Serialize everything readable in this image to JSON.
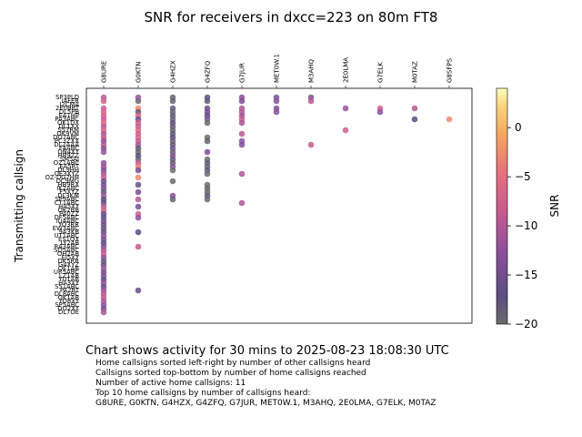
{
  "chart_data": {
    "type": "scatter",
    "title": "SNR for receivers in dxcc=223 on 80m FT8",
    "xlabel": "",
    "ylabel": "Transmitting callsign",
    "colorbar_label": "SNR",
    "colorbar_range": [
      -20,
      4
    ],
    "colorbar_ticks": [
      0,
      -5,
      -10,
      -15,
      -20
    ],
    "colormap": "inferno",
    "x_categories": [
      "G8URE",
      "G0KTN",
      "G4HZX",
      "G4ZFQ",
      "G7JUR",
      "MET0W.1",
      "M3AHQ",
      "2E0LMA",
      "G7ELK",
      "M0TAZ",
      "G8SFPS"
    ],
    "y_labels": [
      "SP3PLD",
      "I4FER",
      "I2CMA",
      "2E0BRT",
      "DL5PB",
      "EA1HP",
      "PA3ABC",
      "OK1DX",
      "DL1XX",
      "S57RM",
      "DK9VM",
      "DO7ABC",
      "PC3ZXX",
      "DL2AAA",
      "F4ABC",
      "ON4XY",
      "HB9ZZ",
      "SM5AJ",
      "OZ1ABC",
      "EA5RT",
      "DL9HH",
      "OE3XYZ",
      "OZ-DG7HH",
      "DC9MG",
      "HB9RX",
      "IK2ABC",
      "F5XYZ",
      "DL3KM",
      "SP9ABC",
      "CT1ABC",
      "HA5XY",
      "OK2BB",
      "PA0ZZ",
      "DF5ABC",
      "IU4ABC",
      "YO3RR",
      "EW3ABC",
      "9A3KB",
      "UT1ABC",
      "ES1QX",
      "LY2AB",
      "RA3ABC",
      "SQ5ABC",
      "OH2AB",
      "EI5XY",
      "DK5RR",
      "G4XYZ",
      "OE1AB",
      "UR5ABC",
      "LZ1AB",
      "YU1AB",
      "HA3XY",
      "S51ABC",
      "PA2RT",
      "DL8ABC",
      "OK1AB",
      "YO8XY",
      "SP5ABC",
      "DO2XY",
      "DL7OE"
    ],
    "points": [
      {
        "x": "G8URE",
        "y": "SP3PLD",
        "snr": -10
      },
      {
        "x": "G0KTN",
        "y": "SP3PLD",
        "snr": -12
      },
      {
        "x": "G4HZX",
        "y": "SP3PLD",
        "snr": -19
      },
      {
        "x": "G4ZFQ",
        "y": "SP3PLD",
        "snr": -17
      },
      {
        "x": "G7JUR",
        "y": "SP3PLD",
        "snr": -13
      },
      {
        "x": "MET0W.1",
        "y": "SP3PLD",
        "snr": -14
      },
      {
        "x": "M3AHQ",
        "y": "SP3PLD",
        "snr": -14
      },
      {
        "x": "G8URE",
        "y": "I4FER",
        "snr": -8
      },
      {
        "x": "G0KTN",
        "y": "I4FER",
        "snr": -20
      },
      {
        "x": "G4HZX",
        "y": "I4FER",
        "snr": -19
      },
      {
        "x": "G4ZFQ",
        "y": "I4FER",
        "snr": -18
      },
      {
        "x": "G7JUR",
        "y": "I4FER",
        "snr": -14
      },
      {
        "x": "MET0W.1",
        "y": "I4FER",
        "snr": -13
      },
      {
        "x": "M3AHQ",
        "y": "I4FER",
        "snr": -10
      },
      {
        "x": "G8URE",
        "y": "2E0BRT",
        "snr": -9
      },
      {
        "x": "G0KTN",
        "y": "2E0BRT",
        "snr": -3
      },
      {
        "x": "G4HZX",
        "y": "2E0BRT",
        "snr": -18
      },
      {
        "x": "G4ZFQ",
        "y": "2E0BRT",
        "snr": -16
      },
      {
        "x": "G7JUR",
        "y": "2E0BRT",
        "snr": -11
      },
      {
        "x": "MET0W.1",
        "y": "2E0BRT",
        "snr": -14
      },
      {
        "x": "2E0LMA",
        "y": "2E0BRT",
        "snr": -12
      },
      {
        "x": "G7ELK",
        "y": "2E0BRT",
        "snr": -8
      },
      {
        "x": "M0TAZ",
        "y": "2E0BRT",
        "snr": -10
      },
      {
        "x": "G8URE",
        "y": "DL5PB",
        "snr": -7
      },
      {
        "x": "G0KTN",
        "y": "DL5PB",
        "snr": -18
      },
      {
        "x": "G4HZX",
        "y": "DL5PB",
        "snr": -19
      },
      {
        "x": "G4ZFQ",
        "y": "DL5PB",
        "snr": -15
      },
      {
        "x": "G7JUR",
        "y": "DL5PB",
        "snr": -10
      },
      {
        "x": "MET0W.1",
        "y": "DL5PB",
        "snr": -13
      },
      {
        "x": "G7ELK",
        "y": "DL5PB",
        "snr": -13
      },
      {
        "x": "G8URE",
        "y": "EA1HP",
        "snr": -8
      },
      {
        "x": "G0KTN",
        "y": "EA1HP",
        "snr": -7
      },
      {
        "x": "G4HZX",
        "y": "EA1HP",
        "snr": -18
      },
      {
        "x": "G4ZFQ",
        "y": "EA1HP",
        "snr": -17
      },
      {
        "x": "G7JUR",
        "y": "EA1HP",
        "snr": -12
      },
      {
        "x": "G8URE",
        "y": "PA3ABC",
        "snr": -9
      },
      {
        "x": "G0KTN",
        "y": "PA3ABC",
        "snr": -16
      },
      {
        "x": "G4HZX",
        "y": "PA3ABC",
        "snr": -19
      },
      {
        "x": "G4ZFQ",
        "y": "PA3ABC",
        "snr": -14
      },
      {
        "x": "G7JUR",
        "y": "PA3ABC",
        "snr": -9
      },
      {
        "x": "M0TAZ",
        "y": "PA3ABC",
        "snr": -17
      },
      {
        "x": "G8SFPS",
        "y": "PA3ABC",
        "snr": -3
      },
      {
        "x": "G8URE",
        "y": "OK1DX",
        "snr": -6
      },
      {
        "x": "G0KTN",
        "y": "OK1DX",
        "snr": -8
      },
      {
        "x": "G4HZX",
        "y": "OK1DX",
        "snr": -17
      },
      {
        "x": "G4ZFQ",
        "y": "OK1DX",
        "snr": -20
      },
      {
        "x": "G7JUR",
        "y": "OK1DX",
        "snr": -11
      },
      {
        "x": "G8URE",
        "y": "DL1XX",
        "snr": -10
      },
      {
        "x": "G0KTN",
        "y": "DL1XX",
        "snr": -9
      },
      {
        "x": "G4HZX",
        "y": "DL1XX",
        "snr": -18
      },
      {
        "x": "G8URE",
        "y": "S57RM",
        "snr": -7
      },
      {
        "x": "G0KTN",
        "y": "S57RM",
        "snr": -6
      },
      {
        "x": "G4HZX",
        "y": "S57RM",
        "snr": -19
      },
      {
        "x": "2E0LMA",
        "y": "S57RM",
        "snr": -8
      },
      {
        "x": "G8URE",
        "y": "DK9VM",
        "snr": -11
      },
      {
        "x": "G0KTN",
        "y": "DK9VM",
        "snr": -8
      },
      {
        "x": "G4HZX",
        "y": "DK9VM",
        "snr": -18
      },
      {
        "x": "G7JUR",
        "y": "DK9VM",
        "snr": -10
      },
      {
        "x": "G8URE",
        "y": "DO7ABC",
        "snr": -9
      },
      {
        "x": "G0KTN",
        "y": "DO7ABC",
        "snr": -7
      },
      {
        "x": "G4HZX",
        "y": "DO7ABC",
        "snr": -17
      },
      {
        "x": "G4ZFQ",
        "y": "DO7ABC",
        "snr": -20
      },
      {
        "x": "G8URE",
        "y": "PC3ZXX",
        "snr": -13
      },
      {
        "x": "G0KTN",
        "y": "PC3ZXX",
        "snr": -9
      },
      {
        "x": "G4HZX",
        "y": "PC3ZXX",
        "snr": -19
      },
      {
        "x": "G4ZFQ",
        "y": "PC3ZXX",
        "snr": -19
      },
      {
        "x": "G7JUR",
        "y": "PC3ZXX",
        "snr": -13
      },
      {
        "x": "G8URE",
        "y": "DL2AAA",
        "snr": -10
      },
      {
        "x": "G0KTN",
        "y": "DL2AAA",
        "snr": -11
      },
      {
        "x": "G4HZX",
        "y": "DL2AAA",
        "snr": -18
      },
      {
        "x": "G7JUR",
        "y": "DL2AAA",
        "snr": -14
      },
      {
        "x": "M3AHQ",
        "y": "DL2AAA",
        "snr": -9
      },
      {
        "x": "G8URE",
        "y": "F4ABC",
        "snr": -14
      },
      {
        "x": "G0KTN",
        "y": "F4ABC",
        "snr": -18
      },
      {
        "x": "G4HZX",
        "y": "F4ABC",
        "snr": -15
      },
      {
        "x": "G8URE",
        "y": "ON4XY",
        "snr": -12
      },
      {
        "x": "G0KTN",
        "y": "ON4XY",
        "snr": -20
      },
      {
        "x": "G4HZX",
        "y": "ON4XY",
        "snr": -19
      },
      {
        "x": "G4ZFQ",
        "y": "ON4XY",
        "snr": -14
      },
      {
        "x": "G0KTN",
        "y": "HB9ZZ",
        "snr": -17
      },
      {
        "x": "G4HZX",
        "y": "HB9ZZ",
        "snr": -14
      },
      {
        "x": "G0KTN",
        "y": "SM5AJ",
        "snr": -19
      },
      {
        "x": "G4HZX",
        "y": "SM5AJ",
        "snr": -18
      },
      {
        "x": "G4ZFQ",
        "y": "SM5AJ",
        "snr": -20
      },
      {
        "x": "G8URE",
        "y": "OZ1ABC",
        "snr": -13
      },
      {
        "x": "G0KTN",
        "y": "OZ1ABC",
        "snr": -9
      },
      {
        "x": "G4HZX",
        "y": "OZ1ABC",
        "snr": -19
      },
      {
        "x": "G4ZFQ",
        "y": "OZ1ABC",
        "snr": -18
      },
      {
        "x": "G8URE",
        "y": "EA5RT",
        "snr": -12
      },
      {
        "x": "G0KTN",
        "y": "EA5RT",
        "snr": -4
      },
      {
        "x": "G4HZX",
        "y": "EA5RT",
        "snr": -13
      },
      {
        "x": "G4ZFQ",
        "y": "EA5RT",
        "snr": -19
      },
      {
        "x": "G8URE",
        "y": "DL9HH",
        "snr": -15
      },
      {
        "x": "G0KTN",
        "y": "DL9HH",
        "snr": -15
      },
      {
        "x": "G4HZX",
        "y": "DL9HH",
        "snr": -20
      },
      {
        "x": "G4ZFQ",
        "y": "DL9HH",
        "snr": -18
      },
      {
        "x": "G8URE",
        "y": "OE3XYZ",
        "snr": -11
      },
      {
        "x": "G4ZFQ",
        "y": "OE3XYZ",
        "snr": -20
      },
      {
        "x": "G7JUR",
        "y": "OE3XYZ",
        "snr": -11
      },
      {
        "x": "G8URE",
        "y": "OZ-DG7HH",
        "snr": -9
      },
      {
        "x": "G0KTN",
        "y": "OZ-DG7HH",
        "snr": -3
      },
      {
        "x": "G8URE",
        "y": "DC9MG",
        "snr": -16
      },
      {
        "x": "G8URE",
        "y": "HB9RX",
        "snr": -15
      },
      {
        "x": "G0KTN",
        "y": "HB9RX",
        "snr": -16
      },
      {
        "x": "G8URE",
        "y": "IK2ABC",
        "snr": -14
      },
      {
        "x": "G8URE",
        "y": "F5XYZ",
        "snr": -18
      },
      {
        "x": "G0KTN",
        "y": "F5XYZ",
        "snr": -14
      },
      {
        "x": "G8URE",
        "y": "DL3KM",
        "snr": -12
      },
      {
        "x": "G8URE",
        "y": "SP9ABC",
        "snr": -17
      },
      {
        "x": "G0KTN",
        "y": "SP9ABC",
        "snr": -10
      },
      {
        "x": "G8URE",
        "y": "CT1ABC",
        "snr": -16
      },
      {
        "x": "G8URE",
        "y": "HA5XY",
        "snr": -10
      },
      {
        "x": "G0KTN",
        "y": "HA5XY",
        "snr": -15
      },
      {
        "x": "G8URE",
        "y": "OK2BB",
        "snr": -8
      },
      {
        "x": "G8URE",
        "y": "PA0ZZ",
        "snr": -16
      },
      {
        "x": "G0KTN",
        "y": "PA0ZZ",
        "snr": -8
      },
      {
        "x": "G8URE",
        "y": "DF5ABC",
        "snr": -17
      },
      {
        "x": "G0KTN",
        "y": "DF5ABC",
        "snr": -13
      },
      {
        "x": "G8URE",
        "y": "IU4ABC",
        "snr": -15
      },
      {
        "x": "G8URE",
        "y": "YO3RR",
        "snr": -16
      },
      {
        "x": "G8URE",
        "y": "EW3ABC",
        "snr": -18
      },
      {
        "x": "G8URE",
        "y": "9A3KB",
        "snr": -16
      },
      {
        "x": "G0KTN",
        "y": "9A3KB",
        "snr": -17
      },
      {
        "x": "G8URE",
        "y": "UT1ABC",
        "snr": -13
      },
      {
        "x": "G8URE",
        "y": "ES1QX",
        "snr": -15
      },
      {
        "x": "G8URE",
        "y": "LY2AB",
        "snr": -17
      },
      {
        "x": "G8URE",
        "y": "RA3ABC",
        "snr": -14
      },
      {
        "x": "G8URE",
        "y": "SQ5ABC",
        "snr": -11
      },
      {
        "x": "G8URE",
        "y": "OH2AB",
        "snr": -9
      },
      {
        "x": "G8URE",
        "y": "EI5XY",
        "snr": -13
      },
      {
        "x": "G8URE",
        "y": "DK5RR",
        "snr": -18
      },
      {
        "x": "G8URE",
        "y": "G4XYZ",
        "snr": -16
      },
      {
        "x": "G8URE",
        "y": "OE1AB",
        "snr": -12
      },
      {
        "x": "G8URE",
        "y": "UR5ABC",
        "snr": -15
      },
      {
        "x": "G8URE",
        "y": "LZ1AB",
        "snr": -14
      },
      {
        "x": "G8URE",
        "y": "YU1AB",
        "snr": -17
      },
      {
        "x": "G8URE",
        "y": "HA3XY",
        "snr": -13
      },
      {
        "x": "G8URE",
        "y": "S51ABC",
        "snr": -16
      },
      {
        "x": "G8URE",
        "y": "PA2RT",
        "snr": -12
      },
      {
        "x": "G8URE",
        "y": "DL8ABC",
        "snr": -10
      },
      {
        "x": "G8URE",
        "y": "OK1AB",
        "snr": -9
      },
      {
        "x": "G8URE",
        "y": "YO8XY",
        "snr": -11
      },
      {
        "x": "G8URE",
        "y": "SP5ABC",
        "snr": -13
      },
      {
        "x": "G8URE",
        "y": "DO2XY",
        "snr": -15
      },
      {
        "x": "G8URE",
        "y": "DL7OE",
        "snr": -11
      },
      {
        "x": "G0KTN",
        "y": "RA3ABC",
        "snr": -9
      },
      {
        "x": "G0KTN",
        "y": "PA2RT",
        "snr": -16
      },
      {
        "x": "G4HZX",
        "y": "DL3KM",
        "snr": -13
      },
      {
        "x": "G4HZX",
        "y": "DC9MG",
        "snr": -20
      },
      {
        "x": "G4ZFQ",
        "y": "HB9RX",
        "snr": -20
      },
      {
        "x": "G4ZFQ",
        "y": "IK2ABC",
        "snr": -19
      },
      {
        "x": "G4ZFQ",
        "y": "F5XYZ",
        "snr": -20
      },
      {
        "x": "G7JUR",
        "y": "CT1ABC",
        "snr": -11
      },
      {
        "x": "G4ZFQ",
        "y": "DL3KM",
        "snr": -18
      },
      {
        "x": "G4HZX",
        "y": "SP9ABC",
        "snr": -19
      },
      {
        "x": "G4ZFQ",
        "y": "SP9ABC",
        "snr": -20
      }
    ],
    "caption": "Chart shows activity for 30 mins to 2025-08-23 18:08:30 UTC",
    "notes": [
      "Home callsigns sorted left-right by number of other callsigns heard",
      "Callsigns sorted top-bottom by number of home callsigns reached",
      "Number of active home callsigns: 11",
      "Top 10 home callsigns by number of callsigns heard:",
      "G8URE, G0KTN, G4HZX, G4ZFQ, G7JUR, MET0W.1, M3AHQ, 2E0LMA, G7ELK, M0TAZ"
    ]
  }
}
